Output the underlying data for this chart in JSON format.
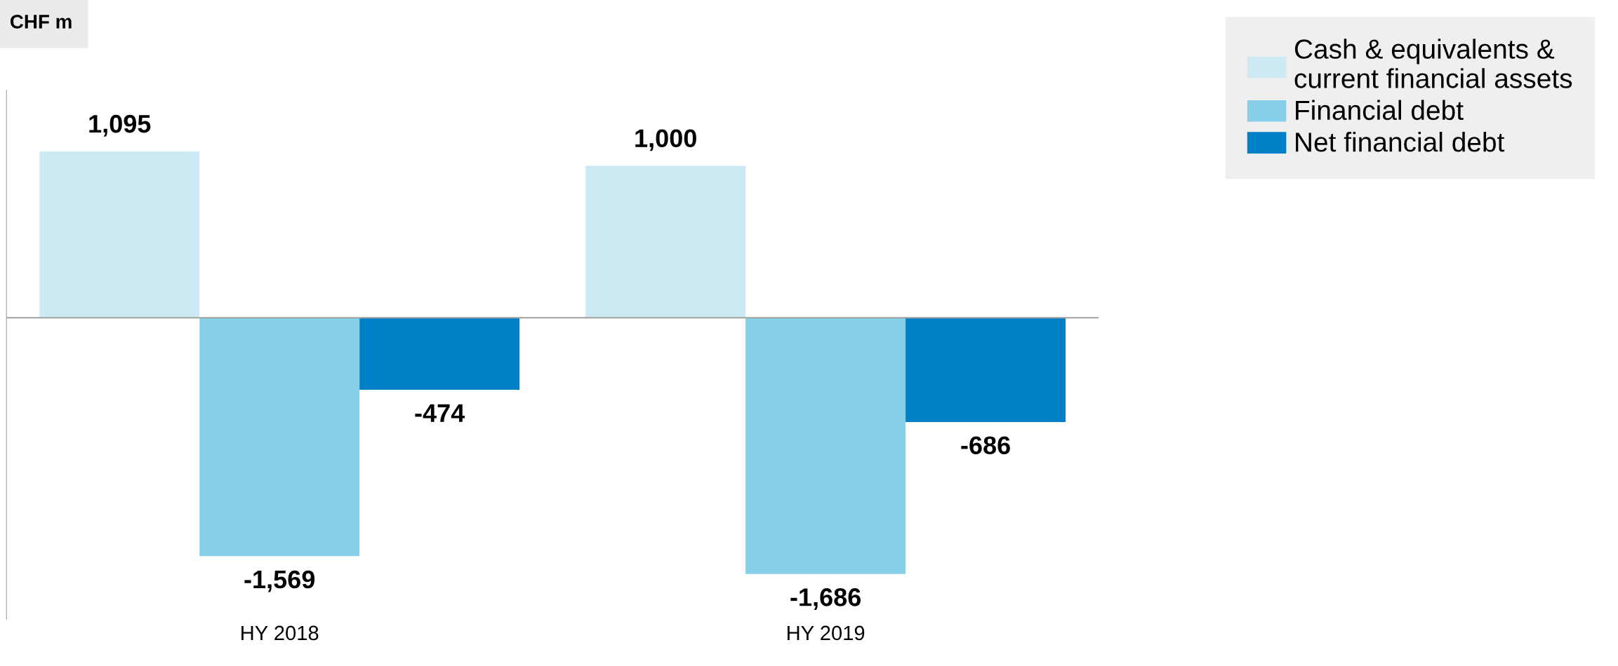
{
  "chart_data": {
    "type": "bar",
    "ylabel": "CHF m",
    "categories": [
      "HY 2018",
      "HY 2019"
    ],
    "series": [
      {
        "name": "Cash & equivalents & current financial assets",
        "color": "#cce9f4",
        "values": [
          1095,
          1000
        ],
        "value_labels": [
          "1,095",
          "1,000"
        ]
      },
      {
        "name": "Financial debt",
        "color": "#87cfe9",
        "values": [
          -1569,
          -1686
        ],
        "value_labels": [
          "-1,569",
          "-1,686"
        ]
      },
      {
        "name": "Net financial debt",
        "color": "#0080c6",
        "values": [
          -474,
          -686
        ],
        "value_labels": [
          "-474",
          "-686"
        ]
      }
    ],
    "relative": false,
    "ylim": [
      -1985,
      1500
    ],
    "legend": "top right"
  }
}
